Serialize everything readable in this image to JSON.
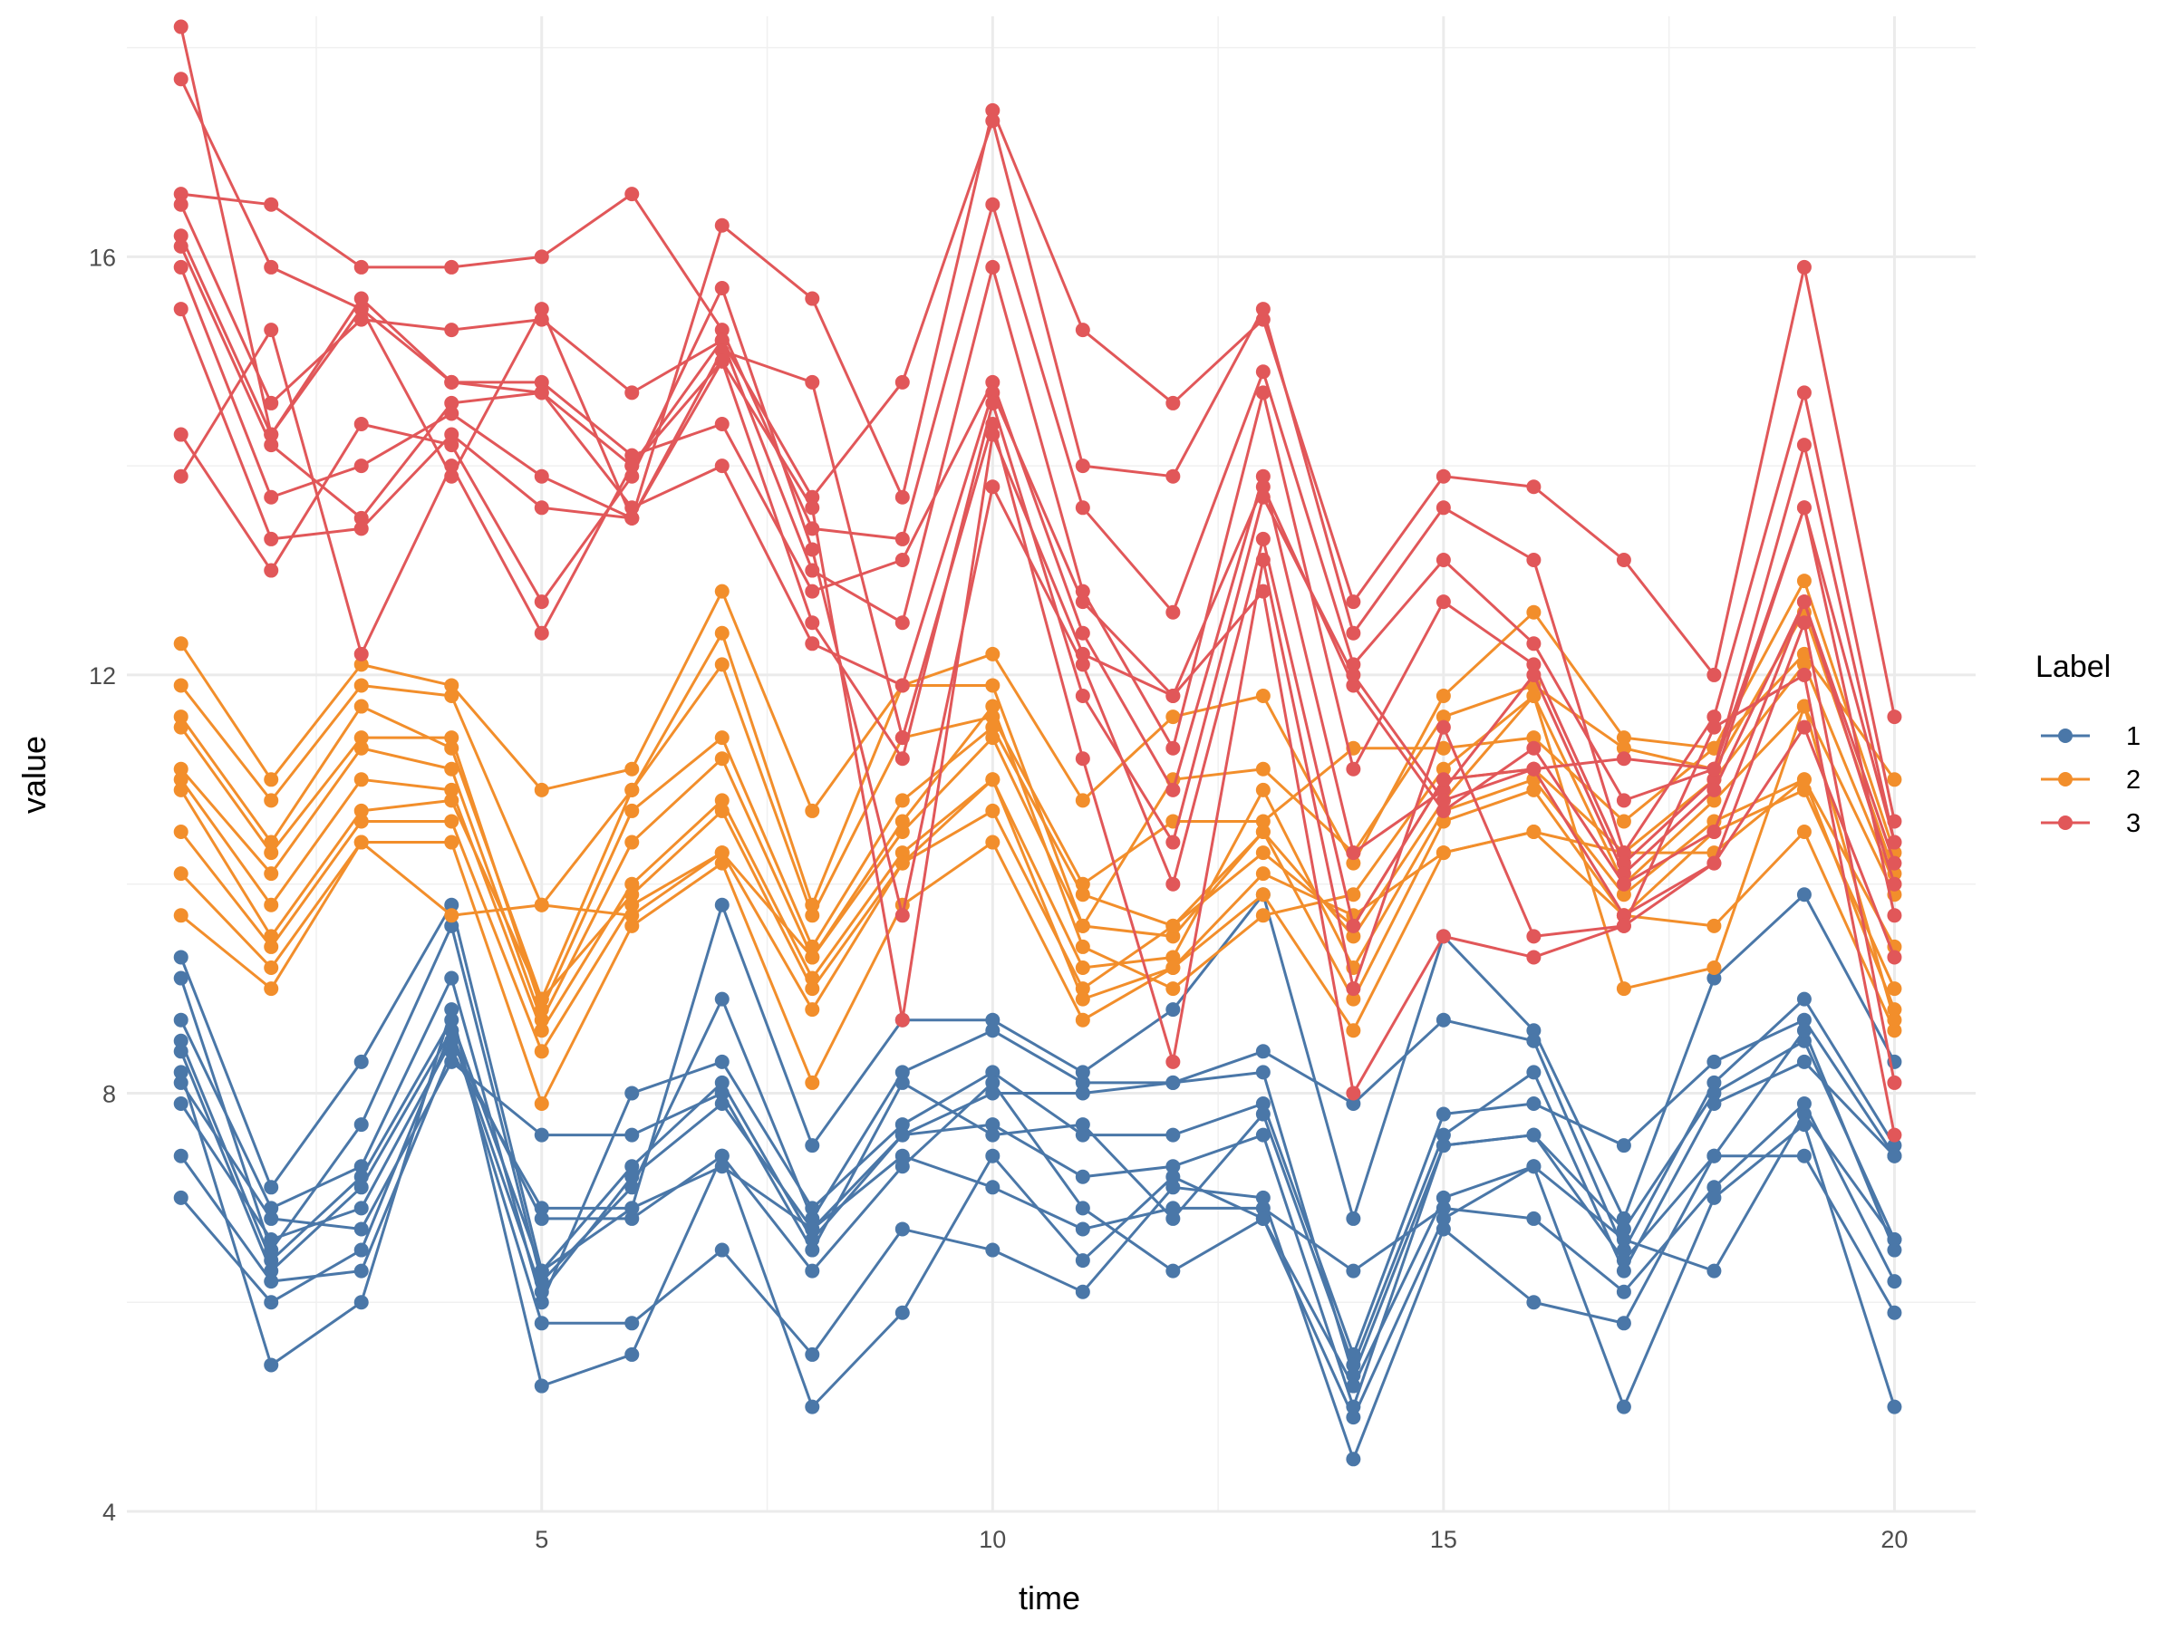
{
  "chart_data": {
    "type": "line",
    "title": "",
    "xlabel": "time",
    "ylabel": "value",
    "xlim": [
      0.4,
      20.9
    ],
    "ylim": [
      4.0,
      18.3
    ],
    "x_major_ticks": [
      5,
      10,
      15,
      20
    ],
    "x_minor_ticks": [
      2.5,
      7.5,
      12.5,
      17.5
    ],
    "y_major_ticks": [
      4,
      8,
      12,
      16
    ],
    "y_minor_ticks": [
      6,
      10,
      14,
      18
    ],
    "grid": true,
    "legend": {
      "title": "Label",
      "position": "right",
      "entries": [
        "1",
        "2",
        "3"
      ]
    },
    "x": [
      1,
      2,
      3,
      4,
      5,
      6,
      7,
      8,
      9,
      10,
      11,
      12,
      13,
      14,
      15,
      16,
      17,
      18,
      19,
      20
    ],
    "groups": [
      {
        "label": "1",
        "color": "#4A77A8",
        "series": [
          [
            9.3,
            7.1,
            8.3,
            9.8,
            6.3,
            6.9,
            9.8,
            7.5,
            8.7,
            8.7,
            8.2,
            8.8,
            9.9,
            6.8,
            9.5,
            8.6,
            6.8,
            9.1,
            9.9,
            8.3
          ],
          [
            9.1,
            6.5,
            7.7,
            9.6,
            6.2,
            7.1,
            8.9,
            6.8,
            8.2,
            8.6,
            8.1,
            8.1,
            8.4,
            7.9,
            8.7,
            8.5,
            6.5,
            8.1,
            8.9,
            7.5
          ],
          [
            8.7,
            6.9,
            7.3,
            9.1,
            6.0,
            8.0,
            8.3,
            6.9,
            7.7,
            8.2,
            7.6,
            7.6,
            7.9,
            5.5,
            7.8,
            7.9,
            7.5,
            8.3,
            8.7,
            7.4
          ],
          [
            8.5,
            6.4,
            7.2,
            8.7,
            6.3,
            7.3,
            8.1,
            6.6,
            7.6,
            8.0,
            8.0,
            8.1,
            8.2,
            5.3,
            7.5,
            7.6,
            6.7,
            8.0,
            8.5,
            6.6
          ],
          [
            8.4,
            6.3,
            7.1,
            8.6,
            6.1,
            7.2,
            7.9,
            6.7,
            7.6,
            7.7,
            7.2,
            7.3,
            7.6,
            5.0,
            7.5,
            7.6,
            6.4,
            7.4,
            8.6,
            6.5
          ],
          [
            8.1,
            6.8,
            6.7,
            8.3,
            7.6,
            7.6,
            8.0,
            6.5,
            8.1,
            7.6,
            7.7,
            6.8,
            7.8,
            5.4,
            7.6,
            8.2,
            6.3,
            7.9,
            8.3,
            7.4
          ],
          [
            7.9,
            6.6,
            6.9,
            8.5,
            6.8,
            6.8,
            7.4,
            6.3,
            7.3,
            8.1,
            6.9,
            6.3,
            6.8,
            5.2,
            7.0,
            7.3,
            6.6,
            6.3,
            7.8,
            6.6
          ],
          [
            7.4,
            6.2,
            6.3,
            8.4,
            6.9,
            6.9,
            7.3,
            6.7,
            7.4,
            7.1,
            6.7,
            6.9,
            6.9,
            6.3,
            6.9,
            6.8,
            6.1,
            7.1,
            7.9,
            6.2
          ],
          [
            7.0,
            6.0,
            6.5,
            8.6,
            5.8,
            5.8,
            6.5,
            5.5,
            6.7,
            6.5,
            6.1,
            7.1,
            7.0,
            4.5,
            6.7,
            6.0,
            5.8,
            7.4,
            7.4,
            5.9
          ],
          [
            8.2,
            5.4,
            6.0,
            8.8,
            5.2,
            5.5,
            7.4,
            5.0,
            5.9,
            7.4,
            6.4,
            7.2,
            6.8,
            4.9,
            6.8,
            7.3,
            5.0,
            7.0,
            7.7,
            5.0
          ]
        ]
      },
      {
        "label": "2",
        "color": "#F28E2B",
        "series": [
          [
            12.3,
            11.0,
            12.1,
            11.9,
            10.9,
            11.1,
            12.8,
            10.7,
            11.9,
            12.2,
            10.8,
            11.6,
            11.8,
            10.2,
            11.8,
            12.6,
            11.4,
            11.3,
            12.9,
            10.3
          ],
          [
            11.9,
            10.8,
            11.9,
            11.8,
            9.8,
            10.9,
            12.4,
            9.8,
            11.9,
            11.9,
            9.6,
            11.0,
            11.1,
            10.3,
            11.6,
            11.9,
            11.3,
            11.1,
            12.6,
            10.1
          ],
          [
            11.6,
            10.4,
            11.7,
            11.3,
            8.9,
            10.9,
            12.1,
            9.7,
            11.4,
            11.6,
            10.0,
            10.6,
            10.6,
            11.3,
            11.3,
            11.4,
            10.6,
            11.3,
            12.2,
            11.0
          ],
          [
            11.5,
            10.3,
            11.4,
            11.4,
            8.8,
            10.7,
            11.4,
            9.4,
            10.8,
            11.5,
            9.9,
            9.6,
            10.3,
            9.6,
            11.0,
            11.1,
            10.3,
            11.0,
            12.1,
            10.0
          ],
          [
            11.1,
            10.1,
            11.3,
            11.1,
            8.7,
            10.4,
            11.2,
            9.3,
            10.5,
            11.4,
            9.6,
            9.5,
            10.5,
            9.5,
            10.8,
            11.8,
            10.0,
            10.8,
            11.7,
            9.9
          ],
          [
            11.0,
            9.8,
            11.0,
            10.9,
            8.6,
            10.0,
            10.8,
            9.1,
            10.3,
            11.0,
            9.2,
            9.3,
            10.9,
            9.2,
            10.7,
            11.0,
            9.9,
            10.6,
            11.0,
            9.4
          ],
          [
            10.9,
            9.5,
            10.7,
            10.8,
            8.9,
            9.9,
            10.7,
            9.0,
            10.2,
            10.7,
            9.0,
            9.6,
            10.5,
            8.9,
            10.6,
            10.9,
            9.7,
            10.5,
            10.9,
            9.0
          ],
          [
            10.5,
            9.4,
            10.6,
            10.6,
            8.4,
            9.8,
            10.3,
            8.8,
            10.2,
            11.0,
            8.9,
            9.2,
            10.1,
            9.7,
            10.3,
            10.5,
            10.3,
            10.3,
            11.0,
            8.8
          ],
          [
            10.1,
            9.2,
            10.4,
            10.4,
            7.9,
            9.6,
            10.2,
            8.1,
            9.8,
            10.4,
            8.7,
            9.2,
            9.9,
            8.6,
            10.3,
            10.5,
            9.7,
            9.6,
            10.5,
            8.6
          ],
          [
            9.7,
            9.0,
            10.4,
            9.7,
            9.8,
            9.7,
            10.3,
            9.3,
            10.6,
            11.7,
            9.4,
            9.0,
            9.7,
            9.9,
            11.1,
            11.8,
            9.0,
            9.2,
            11.7,
            8.7
          ]
        ]
      },
      {
        "label": "3",
        "color": "#E15759",
        "series": [
          [
            18.2,
            14.3,
            15.5,
            13.9,
            15.5,
            13.5,
            16.3,
            15.6,
            13.7,
            17.4,
            15.3,
            14.6,
            15.4,
            12.7,
            13.9,
            13.8,
            13.1,
            12.0,
            15.9,
            11.6
          ],
          [
            17.7,
            15.9,
            15.5,
            14.8,
            14.7,
            14.0,
            15.2,
            13.7,
            14.8,
            17.3,
            14.0,
            13.9,
            15.5,
            12.4,
            13.6,
            13.1,
            10.3,
            11.6,
            14.7,
            10.6
          ],
          [
            16.6,
            16.5,
            15.9,
            15.9,
            16.0,
            16.6,
            15.3,
            13.4,
            13.3,
            16.5,
            13.6,
            12.6,
            14.9,
            12.1,
            13.1,
            12.3,
            10.8,
            11.1,
            14.2,
            10.4
          ],
          [
            16.5,
            14.6,
            15.4,
            15.3,
            15.4,
            14.7,
            15.2,
            13.0,
            12.5,
            15.9,
            12.8,
            11.3,
            14.7,
            11.1,
            12.7,
            12.1,
            10.2,
            11.0,
            13.6,
            10.4
          ],
          [
            16.2,
            14.3,
            15.6,
            14.8,
            14.8,
            14.1,
            14.4,
            12.8,
            13.1,
            14.8,
            12.4,
            10.9,
            13.9,
            10.3,
            10.9,
            12.0,
            10.1,
            10.9,
            12.7,
            10.2
          ],
          [
            16.1,
            14.2,
            13.5,
            14.6,
            14.7,
            13.6,
            14.0,
            12.3,
            11.9,
            14.7,
            12.7,
            11.8,
            13.8,
            11.9,
            10.7,
            11.3,
            10.0,
            10.5,
            12.7,
            10.0
          ],
          [
            15.9,
            13.7,
            14.0,
            14.5,
            13.9,
            13.5,
            15.0,
            12.5,
            11.2,
            14.6,
            11.8,
            10.4,
            13.7,
            12.0,
            10.8,
            11.1,
            9.7,
            10.2,
            11.5,
            9.3
          ],
          [
            15.5,
            13.3,
            13.4,
            14.3,
            13.6,
            13.5,
            15.1,
            14.8,
            11.4,
            14.4,
            11.2,
            8.3,
            13.1,
            9.0,
            11.5,
            9.5,
            9.6,
            11.5,
            12.0,
            7.6
          ],
          [
            14.3,
            13.0,
            14.4,
            14.2,
            12.7,
            13.9,
            15.7,
            13.2,
            9.7,
            13.8,
            12.1,
            10.0,
            13.3,
            9.6,
            11.0,
            11.1,
            11.2,
            11.1,
            13.6,
            9.7
          ],
          [
            13.9,
            15.3,
            12.2,
            14.0,
            12.4,
            14.0,
            15.0,
            13.6,
            8.7,
            14.3,
            12.2,
            11.8,
            12.8,
            8.0,
            9.5,
            9.3,
            9.6,
            10.2,
            12.5,
            8.1
          ]
        ]
      }
    ]
  }
}
